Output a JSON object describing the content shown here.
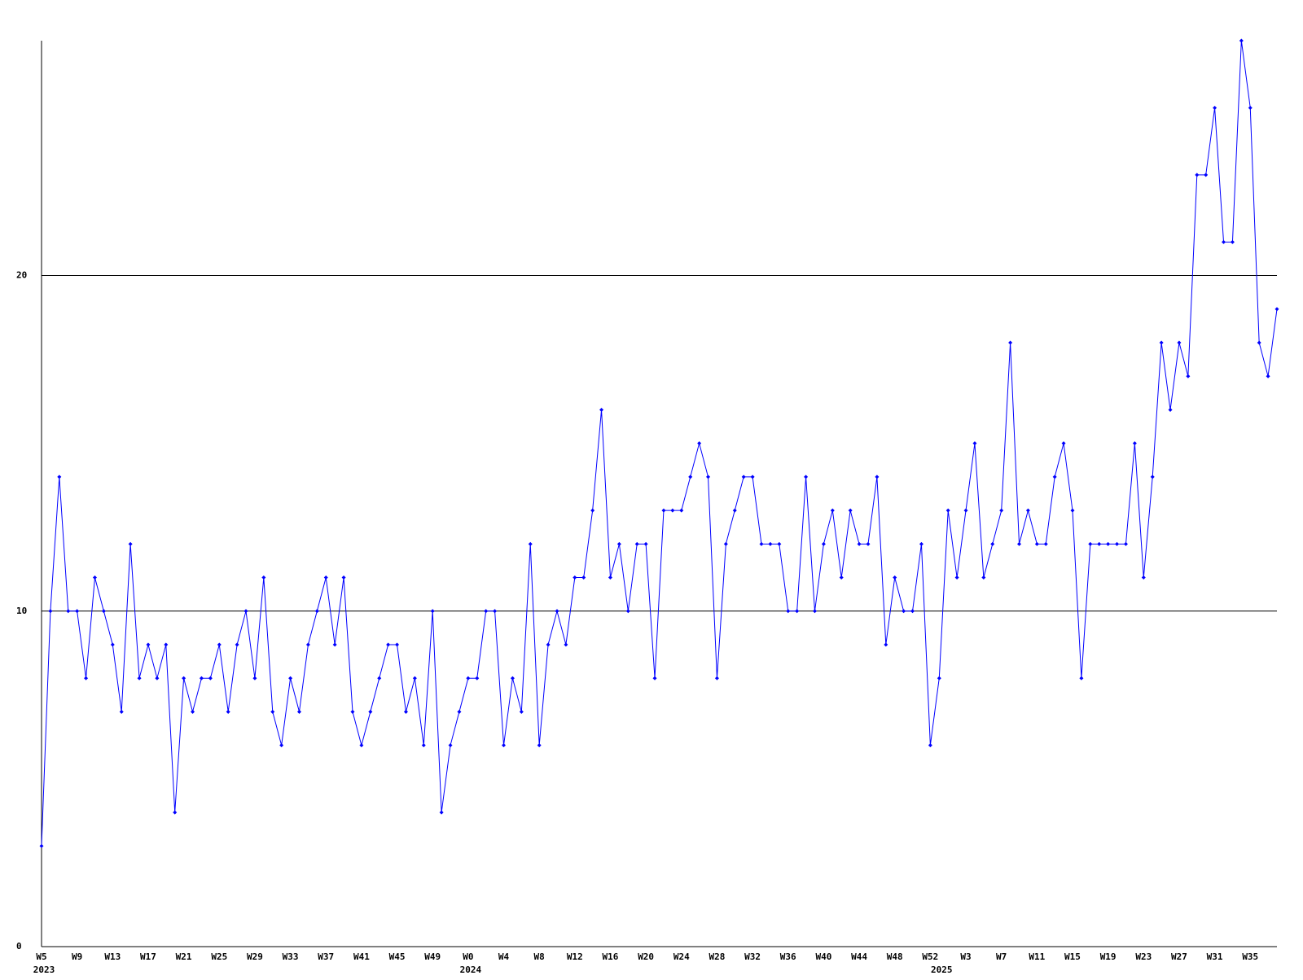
{
  "chart_data": {
    "type": "line",
    "categories": [
      "W5",
      null,
      null,
      null,
      "W9",
      null,
      null,
      null,
      "W13",
      null,
      null,
      null,
      "W17",
      null,
      null,
      null,
      "W21",
      null,
      null,
      null,
      "W25",
      null,
      null,
      null,
      "W29",
      null,
      null,
      null,
      "W33",
      null,
      null,
      null,
      "W37",
      null,
      null,
      null,
      "W41",
      null,
      null,
      null,
      "W45",
      null,
      null,
      null,
      "W49",
      null,
      null,
      null,
      "W0",
      null,
      null,
      null,
      "W4",
      null,
      null,
      null,
      "W8",
      null,
      null,
      null,
      "W12",
      null,
      null,
      null,
      "W16",
      null,
      null,
      null,
      "W20",
      null,
      null,
      null,
      "W24",
      null,
      null,
      null,
      "W28",
      null,
      null,
      null,
      "W32",
      null,
      null,
      null,
      "W36",
      null,
      null,
      null,
      "W40",
      null,
      null,
      null,
      "W44",
      null,
      null,
      null,
      "W48",
      null,
      null,
      null,
      "W52",
      null,
      null,
      null,
      "W3",
      null,
      null,
      null,
      "W7",
      null,
      null,
      null,
      "W11",
      null,
      null,
      null,
      "W15",
      null,
      null,
      null,
      "W19",
      null,
      null,
      null,
      "W23",
      null,
      null,
      null,
      "W27",
      null,
      null,
      null,
      "W31",
      null,
      null,
      null,
      "W35",
      null,
      null,
      null
    ],
    "groups": [
      {
        "label": "2023",
        "start": 0
      },
      {
        "label": "2024",
        "start": 48
      },
      {
        "label": "2025",
        "start": 101
      }
    ],
    "series": [
      {
        "color": "#0000ff",
        "values": [
          3,
          10,
          14,
          10,
          10,
          8,
          11,
          10,
          9,
          7,
          12,
          8,
          9,
          8,
          9,
          4,
          8,
          7,
          8,
          8,
          9,
          7,
          9,
          10,
          8,
          11,
          7,
          6,
          8,
          7,
          9,
          10,
          11,
          9,
          11,
          7,
          6,
          7,
          8,
          9,
          9,
          7,
          8,
          6,
          10,
          4,
          6,
          7,
          8,
          8,
          10,
          10,
          6,
          8,
          7,
          12,
          6,
          9,
          10,
          9,
          11,
          11,
          13,
          16,
          11,
          12,
          10,
          12,
          12,
          8,
          13,
          13,
          13,
          14,
          15,
          14,
          8,
          12,
          13,
          14,
          14,
          12,
          12,
          12,
          10,
          10,
          14,
          10,
          12,
          13,
          11,
          13,
          12,
          12,
          14,
          9,
          11,
          10,
          10,
          12,
          6,
          8,
          13,
          11,
          13,
          15,
          11,
          12,
          13,
          18,
          12,
          13,
          12,
          12,
          14,
          15,
          13,
          8,
          12,
          12,
          12,
          12,
          12,
          15,
          11,
          14,
          18,
          16,
          18,
          17,
          23,
          23,
          25,
          21,
          21,
          27,
          25,
          18,
          17,
          19
        ]
      }
    ],
    "ylim": [
      0,
      27
    ],
    "yticks": [
      0,
      10,
      20
    ],
    "grid": true
  }
}
